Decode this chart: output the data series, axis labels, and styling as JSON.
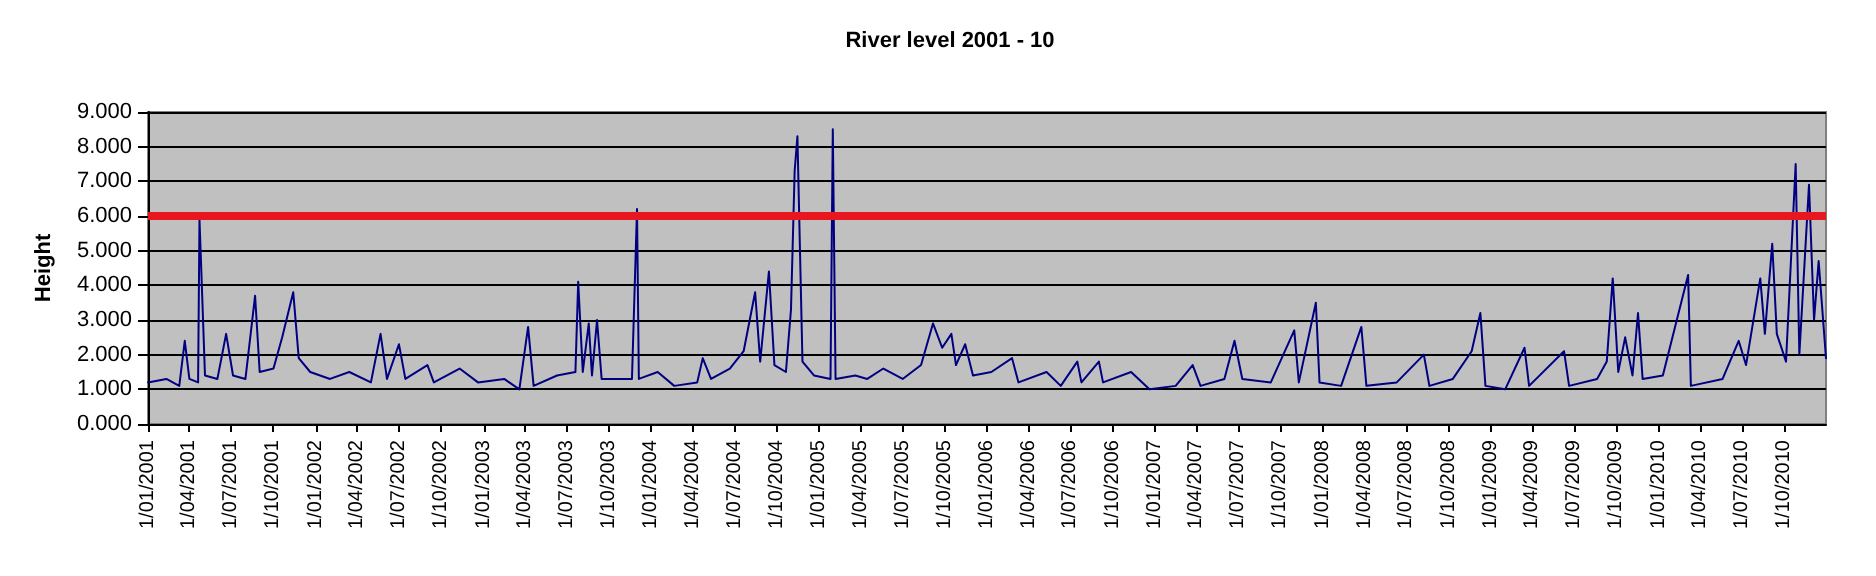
{
  "chart_data": {
    "type": "line",
    "title": "River level 2001 - 10",
    "ylabel": "Height",
    "x": [
      "2001-01-01",
      "2001-02-10",
      "2001-03-10",
      "2001-03-22",
      "2001-04-01",
      "2001-04-20",
      "2001-04-23",
      "2001-04-26",
      "2001-05-05",
      "2001-06-01",
      "2001-06-20",
      "2001-07-05",
      "2001-08-01",
      "2001-08-22",
      "2001-09-01",
      "2001-10-01",
      "2001-10-20",
      "2001-11-13",
      "2001-11-25",
      "2001-12-20",
      "2002-02-01",
      "2002-03-15",
      "2002-05-01",
      "2002-05-22",
      "2002-06-05",
      "2002-07-01",
      "2002-07-15",
      "2002-09-01",
      "2002-09-15",
      "2002-11-10",
      "2002-12-20",
      "2003-02-15",
      "2003-03-20",
      "2003-04-08",
      "2003-04-20",
      "2003-06-10",
      "2003-07-20",
      "2003-07-26",
      "2003-08-05",
      "2003-08-18",
      "2003-08-25",
      "2003-09-05",
      "2003-09-15",
      "2003-11-20",
      "2003-12-01",
      "2003-12-05",
      "2004-01-15",
      "2004-02-20",
      "2004-04-10",
      "2004-04-22",
      "2004-05-10",
      "2004-06-20",
      "2004-07-20",
      "2004-08-14",
      "2004-08-25",
      "2004-09-13",
      "2004-09-25",
      "2004-10-20",
      "2004-10-31",
      "2004-11-08",
      "2004-11-14",
      "2004-11-25",
      "2004-12-20",
      "2005-01-25",
      "2005-01-30",
      "2005-02-05",
      "2005-03-20",
      "2005-04-15",
      "2005-05-20",
      "2005-07-01",
      "2005-08-10",
      "2005-09-05",
      "2005-09-25",
      "2005-10-15",
      "2005-10-25",
      "2005-11-14",
      "2005-12-01",
      "2006-01-10",
      "2006-02-24",
      "2006-03-10",
      "2006-05-10",
      "2006-06-10",
      "2006-07-16",
      "2006-07-25",
      "2006-09-01",
      "2006-09-10",
      "2006-11-10",
      "2006-12-20",
      "2007-02-15",
      "2007-03-24",
      "2007-04-10",
      "2007-06-01",
      "2007-06-23",
      "2007-07-10",
      "2007-09-10",
      "2007-10-31",
      "2007-11-10",
      "2007-12-17",
      "2007-12-25",
      "2008-02-10",
      "2008-03-25",
      "2008-04-05",
      "2008-06-10",
      "2008-08-08",
      "2008-08-20",
      "2008-10-10",
      "2008-11-20",
      "2008-12-09",
      "2008-12-20",
      "2009-02-01",
      "2009-03-15",
      "2009-03-25",
      "2009-06-09",
      "2009-06-20",
      "2009-08-20",
      "2009-09-10",
      "2009-09-23",
      "2009-10-05",
      "2009-10-20",
      "2009-11-05",
      "2009-11-17",
      "2009-11-27",
      "2010-01-10",
      "2010-03-06",
      "2010-03-12",
      "2010-05-20",
      "2010-06-24",
      "2010-07-10",
      "2010-08-10",
      "2010-08-20",
      "2010-09-05",
      "2010-09-15",
      "2010-10-05",
      "2010-10-26",
      "2010-11-03",
      "2010-11-24",
      "2010-12-05",
      "2010-12-15",
      "2010-12-31"
    ],
    "series": [
      {
        "color": "#000080",
        "values": [
          1.2,
          1.3,
          1.1,
          2.4,
          1.3,
          1.2,
          5.9,
          4.8,
          1.4,
          1.3,
          2.6,
          1.4,
          1.3,
          3.7,
          1.5,
          1.6,
          2.5,
          3.8,
          1.9,
          1.5,
          1.3,
          1.5,
          1.2,
          2.6,
          1.3,
          2.3,
          1.3,
          1.7,
          1.2,
          1.6,
          1.2,
          1.3,
          1.0,
          2.8,
          1.1,
          1.4,
          1.5,
          4.1,
          1.5,
          2.9,
          1.4,
          3.0,
          1.3,
          1.3,
          6.2,
          1.3,
          1.5,
          1.1,
          1.2,
          1.9,
          1.3,
          1.6,
          2.1,
          3.8,
          1.8,
          4.4,
          1.7,
          1.5,
          3.3,
          7.3,
          8.3,
          1.8,
          1.4,
          1.3,
          8.5,
          1.3,
          1.4,
          1.3,
          1.6,
          1.3,
          1.7,
          2.9,
          2.2,
          2.6,
          1.7,
          2.3,
          1.4,
          1.5,
          1.9,
          1.2,
          1.5,
          1.1,
          1.8,
          1.2,
          1.8,
          1.2,
          1.5,
          1.0,
          1.1,
          1.7,
          1.1,
          1.3,
          2.4,
          1.3,
          1.2,
          2.7,
          1.2,
          3.5,
          1.2,
          1.1,
          2.8,
          1.1,
          1.2,
          2.0,
          1.1,
          1.3,
          2.1,
          3.2,
          1.1,
          1.0,
          2.2,
          1.1,
          2.1,
          1.1,
          1.3,
          1.8,
          4.2,
          1.5,
          2.5,
          1.4,
          3.2,
          1.3,
          1.4,
          4.3,
          1.1,
          1.3,
          2.4,
          1.7,
          4.2,
          2.6,
          5.2,
          2.6,
          1.8,
          7.5,
          2.0,
          6.9,
          3.0,
          4.7,
          1.9
        ]
      }
    ],
    "xlim": [
      "2001-01-01",
      "2010-12-31"
    ],
    "xticks": [
      {
        "value": "2001-01-01",
        "label": "1/01/2001"
      },
      {
        "value": "2001-04-01",
        "label": "1/04/2001"
      },
      {
        "value": "2001-07-01",
        "label": "1/07/2001"
      },
      {
        "value": "2001-10-01",
        "label": "1/10/2001"
      },
      {
        "value": "2002-01-01",
        "label": "1/01/2002"
      },
      {
        "value": "2002-04-01",
        "label": "1/04/2002"
      },
      {
        "value": "2002-07-01",
        "label": "1/07/2002"
      },
      {
        "value": "2002-10-01",
        "label": "1/10/2002"
      },
      {
        "value": "2003-01-01",
        "label": "1/01/2003"
      },
      {
        "value": "2003-04-01",
        "label": "1/04/2003"
      },
      {
        "value": "2003-07-01",
        "label": "1/07/2003"
      },
      {
        "value": "2003-10-01",
        "label": "1/10/2003"
      },
      {
        "value": "2004-01-01",
        "label": "1/01/2004"
      },
      {
        "value": "2004-04-01",
        "label": "1/04/2004"
      },
      {
        "value": "2004-07-01",
        "label": "1/07/2004"
      },
      {
        "value": "2004-10-01",
        "label": "1/10/2004"
      },
      {
        "value": "2005-01-01",
        "label": "1/01/2005"
      },
      {
        "value": "2005-04-01",
        "label": "1/04/2005"
      },
      {
        "value": "2005-07-01",
        "label": "1/07/2005"
      },
      {
        "value": "2005-10-01",
        "label": "1/10/2005"
      },
      {
        "value": "2006-01-01",
        "label": "1/01/2006"
      },
      {
        "value": "2006-04-01",
        "label": "1/04/2006"
      },
      {
        "value": "2006-07-01",
        "label": "1/07/2006"
      },
      {
        "value": "2006-10-01",
        "label": "1/10/2006"
      },
      {
        "value": "2007-01-01",
        "label": "1/01/2007"
      },
      {
        "value": "2007-04-01",
        "label": "1/04/2007"
      },
      {
        "value": "2007-07-01",
        "label": "1/07/2007"
      },
      {
        "value": "2007-10-01",
        "label": "1/10/2007"
      },
      {
        "value": "2008-01-01",
        "label": "1/01/2008"
      },
      {
        "value": "2008-04-01",
        "label": "1/04/2008"
      },
      {
        "value": "2008-07-01",
        "label": "1/07/2008"
      },
      {
        "value": "2008-10-01",
        "label": "1/10/2008"
      },
      {
        "value": "2009-01-01",
        "label": "1/01/2009"
      },
      {
        "value": "2009-04-01",
        "label": "1/04/2009"
      },
      {
        "value": "2009-07-01",
        "label": "1/07/2009"
      },
      {
        "value": "2009-10-01",
        "label": "1/10/2009"
      },
      {
        "value": "2010-01-01",
        "label": "1/01/2010"
      },
      {
        "value": "2010-04-01",
        "label": "1/04/2010"
      },
      {
        "value": "2010-07-01",
        "label": "1/07/2010"
      },
      {
        "value": "2010-10-01",
        "label": "1/10/2010"
      }
    ],
    "ylim": [
      0,
      9
    ],
    "yticks": [
      {
        "value": 0,
        "label": "0.000"
      },
      {
        "value": 1,
        "label": "1.000"
      },
      {
        "value": 2,
        "label": "2.000"
      },
      {
        "value": 3,
        "label": "3.000"
      },
      {
        "value": 4,
        "label": "4.000"
      },
      {
        "value": 5,
        "label": "5.000"
      },
      {
        "value": 6,
        "label": "6.000"
      },
      {
        "value": 7,
        "label": "7.000"
      },
      {
        "value": 8,
        "label": "8.000"
      },
      {
        "value": 9,
        "label": "9.000"
      }
    ],
    "grid": "y",
    "marker": "none",
    "line_style": "solid",
    "ref_lines": [
      {
        "axis": "y",
        "value": 6,
        "color": "#e8161e",
        "line_style": "solid"
      }
    ]
  }
}
